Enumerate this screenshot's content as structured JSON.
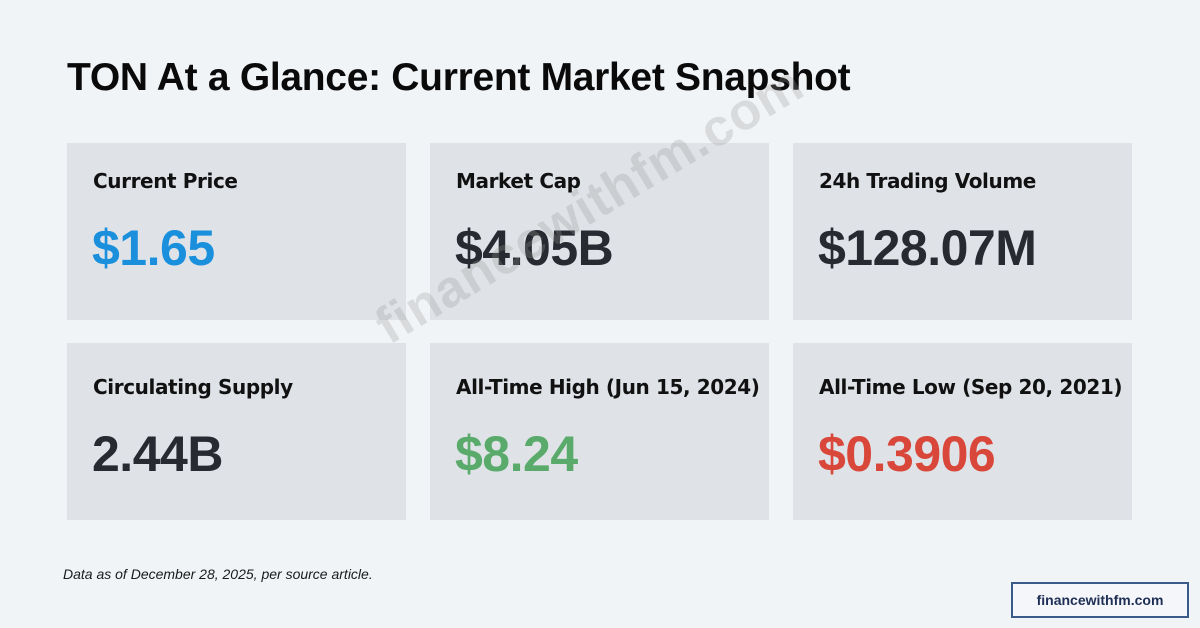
{
  "header": {
    "title": "TON At a Glance: Current Market Snapshot"
  },
  "colors": {
    "background": "#f1f4f7",
    "card": "#dfe3e8",
    "price_blue": "#1a8fdc",
    "neutral_value": "#272a30",
    "ath_green": "#5aab6b",
    "atl_red": "#d9473a",
    "badge_border": "#3b5a8c"
  },
  "cards": [
    {
      "label": "Current Price",
      "value": "$1.65"
    },
    {
      "label": "Market Cap",
      "value": "$4.05B"
    },
    {
      "label": "24h Trading Volume",
      "value": "$128.07M"
    },
    {
      "label": "Circulating Supply",
      "value": "2.44B"
    },
    {
      "label": "All-Time High (Jun 15, 2024)",
      "value": "$8.24"
    },
    {
      "label": "All-Time Low (Sep 20, 2021)",
      "value": "$0.3906"
    }
  ],
  "footer": {
    "note": "Data as of December 28, 2025, per source article.",
    "brand_badge": "financewithfm.com"
  },
  "watermark": {
    "text": "financewithfm.com"
  }
}
